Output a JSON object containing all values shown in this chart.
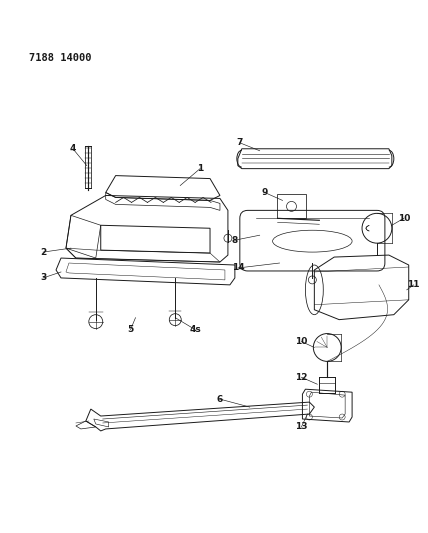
{
  "title": "7188 14000",
  "background_color": "#ffffff",
  "fig_width": 4.28,
  "fig_height": 5.33,
  "dpi": 100,
  "line_color": "#1a1a1a",
  "part_label_fontsize": 6.5,
  "title_fontsize": 7.5
}
